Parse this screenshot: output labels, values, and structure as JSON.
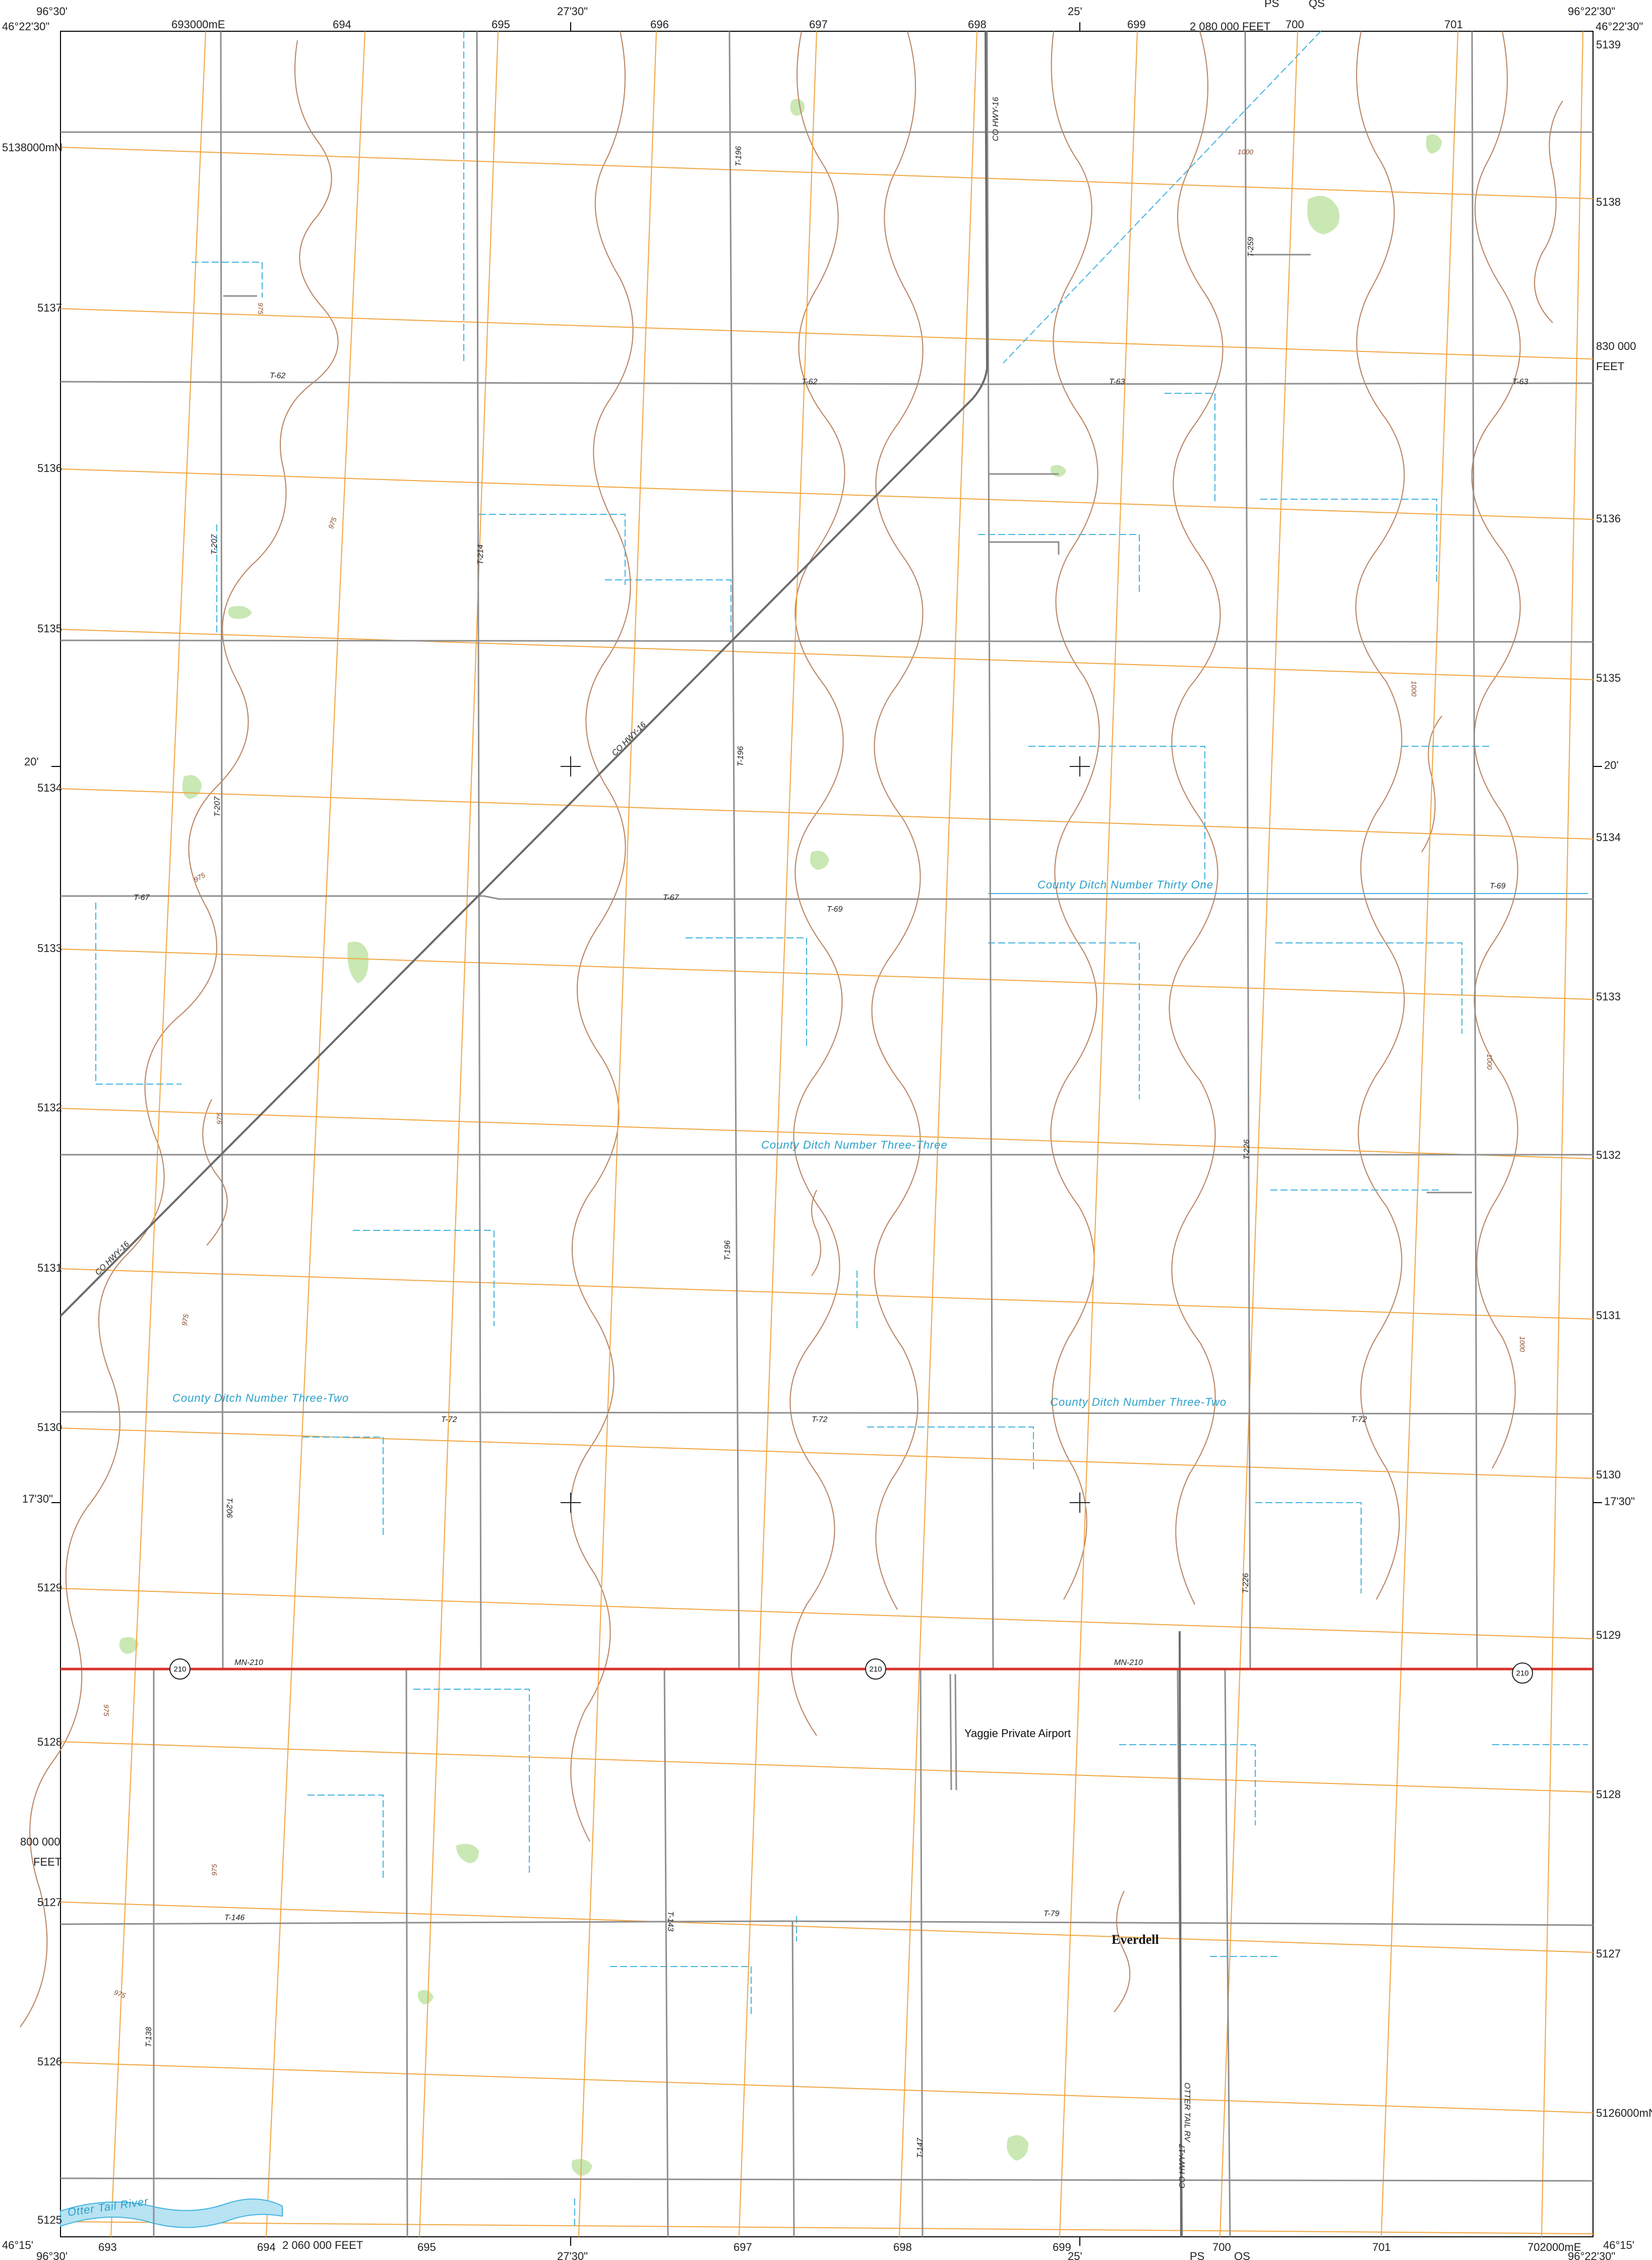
{
  "edge_labels": {
    "top_left_long": "96°30'",
    "top_left_lat": "46°22'30\"",
    "top_mid_long": "27'30\"",
    "top_25": "25'",
    "top_right_long": "96°22'30\"",
    "top_right_lat": "46°22'30\"",
    "bottom_left_long": "96°30'",
    "bottom_left_lat": "46°15'",
    "bottom_mid_long": "27'30\"",
    "bottom_25": "25'",
    "bottom_right_long": "96°22'30\"",
    "bottom_right_lat": "46°15'",
    "left_20": "20'",
    "left_1730": "17'30\"",
    "right_20": "20'",
    "right_1730": "17'30\"",
    "top_feet": "2 080 000 FEET",
    "bottom_feet": "2 060 000 FEET",
    "right_feet_value": "830 000",
    "right_feet_unit": "FEET",
    "left_feet_value": "800 000",
    "left_feet_unit": "FEET",
    "top_ps": "PS",
    "top_qs": "QS",
    "bottom_ps": "PS",
    "bottom_qs": "QS"
  },
  "utm_easting_top": [
    {
      "label": "693000mE"
    },
    {
      "label": "694"
    },
    {
      "label": "695"
    },
    {
      "label": "696"
    },
    {
      "label": "697"
    },
    {
      "label": "698"
    },
    {
      "label": "699"
    },
    {
      "label": "700"
    },
    {
      "label": "701"
    }
  ],
  "utm_easting_bottom": [
    {
      "label": "693"
    },
    {
      "label": "694"
    },
    {
      "label": "695"
    },
    {
      "label": "697"
    },
    {
      "label": "698"
    },
    {
      "label": "699"
    },
    {
      "label": "700"
    },
    {
      "label": "701"
    },
    {
      "label": "702000mE"
    }
  ],
  "utm_northing_left": [
    {
      "label": "5138000mN"
    },
    {
      "label": "5137"
    },
    {
      "label": "5136"
    },
    {
      "label": "5135"
    },
    {
      "label": "5134"
    },
    {
      "label": "5133"
    },
    {
      "label": "5132"
    },
    {
      "label": "5131"
    },
    {
      "label": "5130"
    },
    {
      "label": "5129"
    },
    {
      "label": "5128"
    },
    {
      "label": "5127"
    },
    {
      "label": "5126"
    },
    {
      "label": "5125"
    }
  ],
  "utm_northing_right": [
    {
      "label": "5139"
    },
    {
      "label": "5138"
    },
    {
      "label": "5136"
    },
    {
      "label": "5135"
    },
    {
      "label": "5134"
    },
    {
      "label": "5133"
    },
    {
      "label": "5132"
    },
    {
      "label": "5131"
    },
    {
      "label": "5130"
    },
    {
      "label": "5129"
    },
    {
      "label": "5128"
    },
    {
      "label": "5127"
    },
    {
      "label": "5126000mN"
    }
  ],
  "road_labels": {
    "cohwy16_top": "CO HWY-16",
    "cohwy16_mid": "CO HWY-16",
    "cohwy16_low": "CO HWY-16",
    "t62_a": "T-62",
    "t62_b": "T-62",
    "t63_a": "T-63",
    "t63_b": "T-63",
    "t196_a": "T-196",
    "t196_b": "T-196",
    "t196_c": "T-196",
    "t207_a": "T-207",
    "t207_b": "T-207",
    "t214": "T-214",
    "t259": "T-259",
    "t67_a": "T-67",
    "t67_b": "T-67",
    "t69_a": "T-69",
    "t69_b": "T-69",
    "t226_a": "T-226",
    "t226_b": "T-226",
    "t72_a": "T-72",
    "t72_b": "T-72",
    "t72_c": "T-72",
    "t206": "T-206",
    "mn210_a": "MN-210",
    "mn210_b": "MN-210",
    "t146": "T-146",
    "t143": "T-143",
    "t79": "T-79",
    "t138": "T-138",
    "t147": "T-147",
    "cohwy17": "CO HWY-17",
    "ottertail_rv": "OTTER TAIL RV"
  },
  "shields": [
    "210",
    "210",
    "210"
  ],
  "water_labels": {
    "ditch31": "County Ditch Number Thirty One",
    "ditch33": "County Ditch Number Three-Three",
    "ditch32_w": "County Ditch Number Three-Two",
    "ditch32_e": "County Ditch Number Three-Two",
    "river": "Otter Tail River"
  },
  "places": {
    "airport": "Yaggie Private Airport",
    "town": "Everdell"
  },
  "contour_labels": [
    "975",
    "975",
    "975",
    "975",
    "975",
    "975",
    "975",
    "975",
    "1000",
    "1000",
    "1000",
    "1000"
  ],
  "colors": {
    "contour": "#b8825f",
    "road": "#8e8e8e",
    "state_highway": "#d8312b",
    "grid": "#f2a541",
    "water": "#44b3e0",
    "vegetation": "#c9e8b4",
    "pls": "#e8a0a0"
  }
}
